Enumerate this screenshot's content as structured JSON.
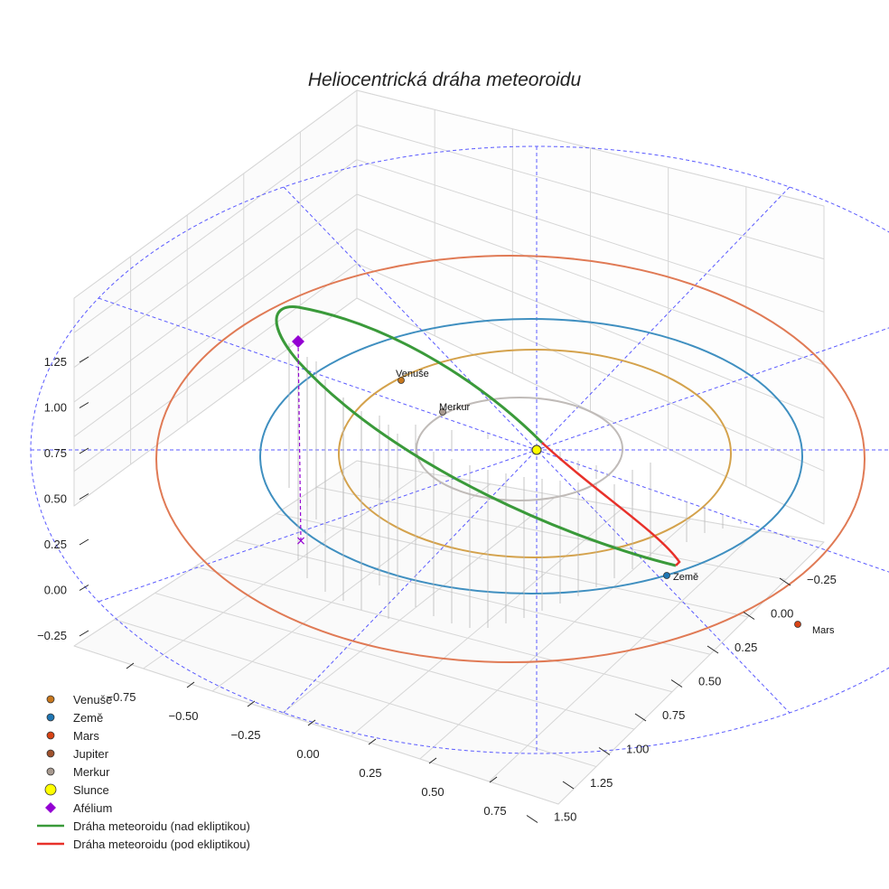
{
  "chart_data": {
    "type": "3d-orbit",
    "title": "Heliocentrická dráha meteoroidu",
    "axes": {
      "x": {
        "ticks": [
          "−0.75",
          "−0.50",
          "−0.25",
          "0.00",
          "0.25",
          "0.50",
          "0.75"
        ]
      },
      "y": {
        "ticks": [
          "−0.25",
          "0.00",
          "0.25",
          "0.50",
          "0.75",
          "1.00",
          "1.25",
          "1.50"
        ]
      },
      "z": {
        "ticks": [
          "−0.25",
          "0.00",
          "0.25",
          "0.50",
          "0.75",
          "1.00",
          "1.25"
        ]
      }
    },
    "planets": [
      {
        "name": "Venuše",
        "label": "Venuše",
        "orbit_radius_au": 0.72,
        "color": "#d4a24c",
        "marker": "#c8781e"
      },
      {
        "name": "Země",
        "label": "Země",
        "orbit_radius_au": 1.0,
        "color": "#3f8fc0",
        "marker": "#1f77b4"
      },
      {
        "name": "Mars",
        "label": "Mars",
        "orbit_radius_au": 1.52,
        "color": "#e07a55",
        "marker": "#d84315"
      },
      {
        "name": "Merkur",
        "label": "Merkur",
        "orbit_radius_au": 0.39,
        "color": "#c0bbb8",
        "marker": "#a89a90"
      }
    ],
    "meteoroid_orbit": {
      "above_ecliptic": {
        "name": "Dráha meteoroidu (nad ekliptikou)",
        "color": "#3a9a3a"
      },
      "below_ecliptic": {
        "name": "Dráha meteoroidu (pod ekliptikou)",
        "color": "#e8312a"
      }
    },
    "aphelion": {
      "name": "Afélium",
      "color": "#9400d3",
      "height_au": 1.25
    },
    "sun": {
      "name": "Slunce",
      "color": "#ffff00"
    },
    "legend": [
      {
        "label": "Venuše",
        "kind": "dot",
        "color": "#c8781e"
      },
      {
        "label": "Země",
        "kind": "dot",
        "color": "#1f77b4"
      },
      {
        "label": "Mars",
        "kind": "dot",
        "color": "#d84315"
      },
      {
        "label": "Jupiter",
        "kind": "dot",
        "color": "#a0522d"
      },
      {
        "label": "Merkur",
        "kind": "dot",
        "color": "#a89a90"
      },
      {
        "label": "Slunce",
        "kind": "sun",
        "color": "#ffff00"
      },
      {
        "label": "Afélium",
        "kind": "diamond",
        "color": "#9400d3"
      },
      {
        "label": "Dráha meteoroidu (nad ekliptikou)",
        "kind": "line",
        "color": "#3a9a3a"
      },
      {
        "label": "Dráha meteoroidu (pod ekliptikou)",
        "kind": "line",
        "color": "#e8312a"
      }
    ]
  }
}
